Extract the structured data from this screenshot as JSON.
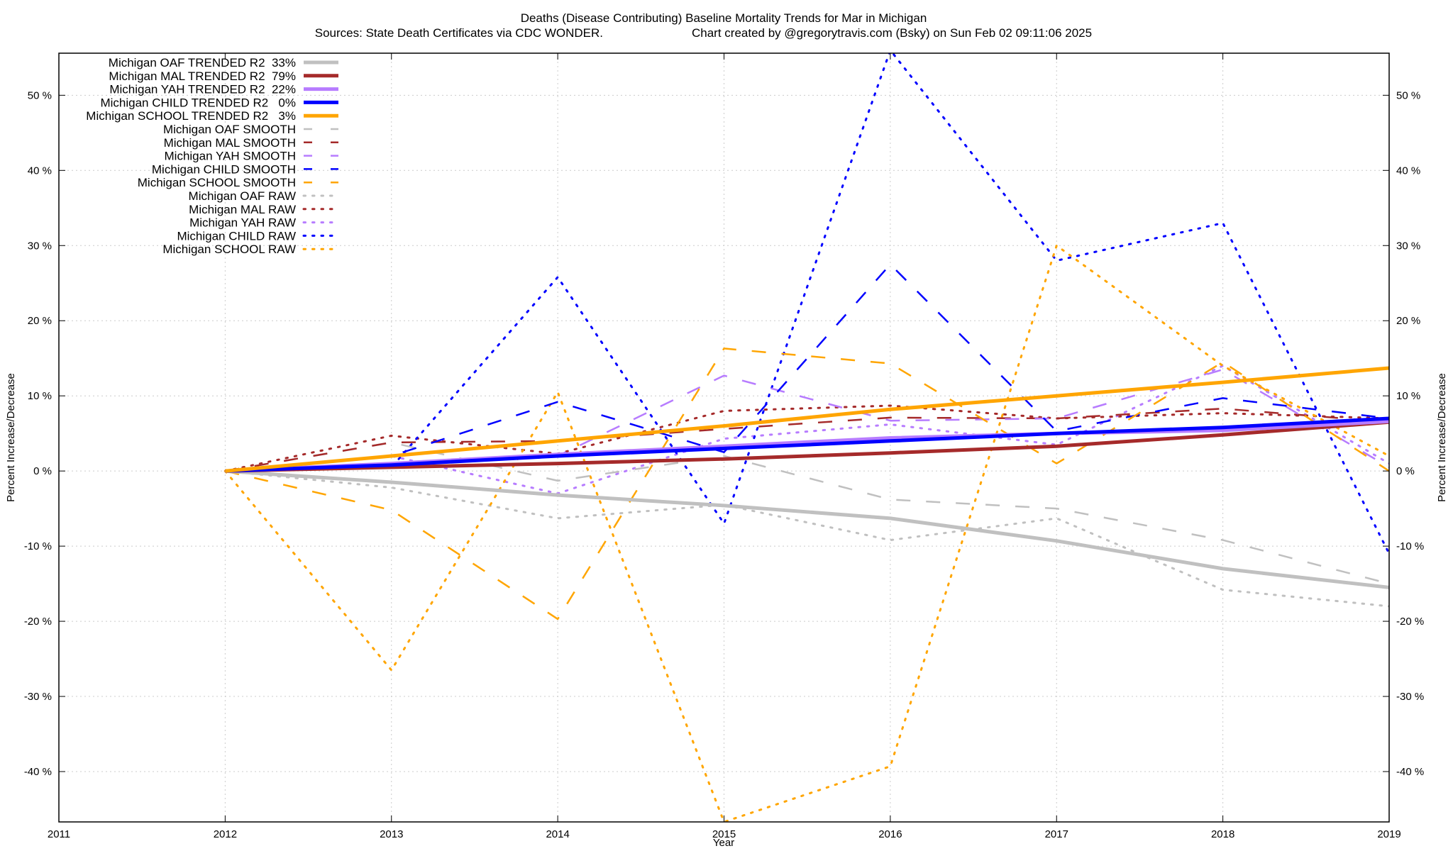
{
  "chart_data": {
    "type": "line",
    "title": "Deaths (Disease Contributing)  Baseline Mortality Trends for Mar in Michigan",
    "subtitle_left": "Sources: State Death Certificates via CDC WONDER.",
    "subtitle_right": "Chart created by @gregorytravis.com (Bsky) on Sun Feb 02 09:11:06 2025",
    "xlabel": "Year",
    "ylabel": "Percent Increase/Decrease",
    "ylabel_right": "Percent Increase/Decrease",
    "xlim": [
      2011,
      2019
    ],
    "ylim": [
      -46.7,
      55.6
    ],
    "grid": true,
    "legend_position": "top-left",
    "x_ticks": [
      "2011",
      "2012",
      "2013",
      "2014",
      "2015",
      "2016",
      "2017",
      "2018",
      "2019"
    ],
    "y_ticks": [
      {
        "v": 50,
        "label": "50 %"
      },
      {
        "v": 40,
        "label": "40 %"
      },
      {
        "v": 30,
        "label": "30 %"
      },
      {
        "v": 20,
        "label": "20 %"
      },
      {
        "v": 10,
        "label": "10 %"
      },
      {
        "v": 0,
        "label": "0 %"
      },
      {
        "v": -10,
        "label": "-10 %"
      },
      {
        "v": -20,
        "label": "-20 %"
      },
      {
        "v": -30,
        "label": "-30 %"
      },
      {
        "v": -40,
        "label": "-40 %"
      }
    ],
    "x": [
      2012,
      2013,
      2014,
      2015,
      2016,
      2017,
      2018,
      2019
    ],
    "series": [
      {
        "name": "Michigan OAF TRENDED R2  33%",
        "style": "trended",
        "color": "#c0c0c0",
        "values": [
          0,
          -1.5,
          -3.2,
          -4.6,
          -6.3,
          -9.3,
          -13.0,
          -15.5
        ]
      },
      {
        "name": "Michigan MAL TRENDED R2  79%",
        "style": "trended",
        "color": "#a52a2a",
        "values": [
          0,
          0.5,
          1.0,
          1.6,
          2.4,
          3.3,
          4.8,
          6.5
        ]
      },
      {
        "name": "Michigan YAH TRENDED R2  22%",
        "style": "trended",
        "color": "#b77cff",
        "values": [
          0,
          1.0,
          2.2,
          3.3,
          4.4,
          5.0,
          5.4,
          6.6
        ]
      },
      {
        "name": "Michigan CHILD TRENDED R2   0%",
        "style": "trended",
        "color": "#0000ff",
        "values": [
          0,
          0.8,
          2.0,
          3.0,
          4.0,
          5.0,
          5.8,
          7.0
        ]
      },
      {
        "name": "Michigan SCHOOL TRENDED R2   3%",
        "style": "trended",
        "color": "#ffa500",
        "values": [
          0,
          2.0,
          4.0,
          6.0,
          8.2,
          10.0,
          11.8,
          13.7
        ]
      },
      {
        "name": "Michigan OAF SMOOTH",
        "style": "smooth",
        "color": "#c0c0c0",
        "values": [
          0,
          3.8,
          -1.3,
          2.0,
          -3.8,
          -5.0,
          -9.2,
          -15.0
        ]
      },
      {
        "name": "Michigan MAL SMOOTH",
        "style": "smooth",
        "color": "#a52a2a",
        "values": [
          0,
          3.8,
          4.0,
          5.6,
          7.1,
          7.0,
          8.3,
          6.5
        ]
      },
      {
        "name": "Michigan YAH SMOOTH",
        "style": "smooth",
        "color": "#b77cff",
        "values": [
          0,
          1.0,
          2.0,
          12.7,
          6.7,
          7.0,
          13.5,
          0.5
        ]
      },
      {
        "name": "Michigan CHILD SMOOTH",
        "style": "smooth",
        "color": "#0000ff",
        "values": [
          0,
          2.0,
          9.2,
          2.5,
          27.5,
          5.3,
          9.7,
          7.0
        ]
      },
      {
        "name": "Michigan SCHOOL SMOOTH",
        "style": "smooth",
        "color": "#ffa500",
        "values": [
          0,
          -5.2,
          -19.7,
          16.3,
          14.3,
          1.0,
          14.5,
          0.0
        ]
      },
      {
        "name": "Michigan OAF RAW",
        "style": "raw",
        "color": "#c0c0c0",
        "values": [
          0,
          -2.2,
          -6.3,
          -4.5,
          -9.2,
          -6.3,
          -15.8,
          -18.0
        ]
      },
      {
        "name": "Michigan MAL RAW",
        "style": "raw",
        "color": "#a52a2a",
        "values": [
          0,
          4.7,
          2.3,
          8.0,
          8.7,
          7.0,
          7.7,
          7.0
        ]
      },
      {
        "name": "Michigan YAH RAW",
        "style": "raw",
        "color": "#b77cff",
        "values": [
          0,
          2.0,
          -3.0,
          4.3,
          6.2,
          3.5,
          14.0,
          1.0
        ]
      },
      {
        "name": "Michigan CHILD RAW",
        "style": "raw",
        "color": "#0000ff",
        "values": [
          0,
          0.5,
          25.8,
          -7.0,
          56.0,
          28.0,
          33.0,
          -11.0
        ]
      },
      {
        "name": "Michigan SCHOOL RAW",
        "style": "raw",
        "color": "#ffa500",
        "values": [
          0,
          -26.5,
          10.5,
          -46.7,
          -39.3,
          30.0,
          14.0,
          2.0
        ]
      }
    ]
  }
}
